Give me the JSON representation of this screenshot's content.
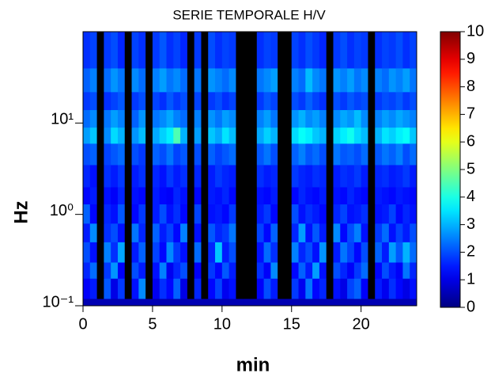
{
  "chart_data": {
    "type": "heatmap",
    "title": "SERIE TEMPORALE H/V",
    "x_label": "min",
    "y_label": "Hz",
    "xlim": [
      0,
      24
    ],
    "xticks": [
      0,
      5,
      10,
      15,
      20
    ],
    "ylim": [
      0.1,
      100
    ],
    "yscale": "log",
    "yticks": [
      {
        "value": 0.1,
        "label": "10⁻¹"
      },
      {
        "value": 1,
        "label": "10⁰"
      },
      {
        "value": 10,
        "label": "10¹"
      }
    ],
    "colormap": "jet",
    "gap_color": "#000000",
    "colorbar": {
      "lim": [
        0,
        10
      ],
      "ticks": [
        0,
        1,
        2,
        3,
        4,
        5,
        6,
        7,
        8,
        9,
        10
      ]
    },
    "x_edges": [
      0,
      0.5,
      1,
      1.5,
      2,
      2.5,
      3,
      3.5,
      4,
      4.5,
      5,
      5.5,
      6,
      6.5,
      7,
      7.5,
      8,
      8.5,
      9,
      9.5,
      10,
      10.5,
      11,
      11.5,
      12,
      12.5,
      13,
      13.5,
      14,
      14.5,
      15,
      15.5,
      16,
      16.5,
      17,
      17.5,
      18,
      18.5,
      19,
      19.5,
      20,
      20.5,
      21,
      21.5,
      22,
      22.5,
      23,
      23.5,
      24
    ],
    "y_edges": [
      0.1,
      0.12,
      0.2,
      0.3,
      0.5,
      0.8,
      1.3,
      2,
      3.5,
      6,
      9,
      14,
      22,
      40,
      100
    ],
    "z": [
      [
        0.5,
        0.5,
        0.5,
        0.5,
        0.5,
        0.5,
        0.5,
        0.5,
        0.5,
        0.5,
        0.5,
        0.5,
        0.5,
        0.5,
        0.5,
        0.5,
        0.5,
        0.5,
        0.5,
        0.5,
        0.5,
        0.5,
        0.5,
        0.5,
        0.5,
        0.5,
        0.5,
        0.5,
        0.5,
        0.5,
        0.5,
        0.5,
        0.5,
        0.5,
        0.5,
        0.5,
        0.5,
        0.5,
        0.5,
        0.5,
        0.5,
        0.5,
        0.5,
        0.5,
        0.5,
        0.5,
        0.5,
        0.5
      ],
      [
        1.2,
        1.5,
        null,
        2.1,
        1.0,
        1.8,
        null,
        1.4,
        2.6,
        null,
        1.1,
        1.7,
        1.3,
        2.2,
        1.0,
        null,
        1.6,
        null,
        1.3,
        1.9,
        1.1,
        1.4,
        null,
        null,
        null,
        1.2,
        2.0,
        1.5,
        null,
        null,
        1.8,
        1.1,
        2.4,
        1.3,
        1.6,
        null,
        1.4,
        1.0,
        1.9,
        2.2,
        1.2,
        null,
        1.5,
        1.1,
        1.7,
        1.3,
        1.0,
        1.4
      ],
      [
        1.6,
        2.3,
        null,
        1.8,
        2.7,
        1.2,
        null,
        2.0,
        1.5,
        null,
        1.4,
        2.5,
        1.1,
        1.6,
        2.0,
        null,
        1.2,
        null,
        1.8,
        1.3,
        2.1,
        1.5,
        null,
        null,
        null,
        1.7,
        1.2,
        2.6,
        null,
        null,
        1.3,
        2.2,
        1.5,
        2.8,
        1.4,
        null,
        2.0,
        1.6,
        1.2,
        1.8,
        2.3,
        null,
        1.3,
        2.0,
        1.5,
        1.2,
        2.4,
        1.6
      ],
      [
        2.0,
        1.4,
        null,
        2.5,
        1.7,
        2.9,
        null,
        1.5,
        2.2,
        null,
        1.9,
        1.3,
        2.6,
        1.8,
        1.4,
        null,
        2.3,
        null,
        1.6,
        3.2,
        1.5,
        2.0,
        null,
        null,
        null,
        1.4,
        2.3,
        1.7,
        null,
        null,
        2.5,
        1.6,
        2.0,
        1.4,
        2.7,
        null,
        1.5,
        2.4,
        1.9,
        1.3,
        2.0,
        null,
        2.2,
        1.5,
        2.8,
        2.1,
        3.0,
        2.3
      ],
      [
        1.5,
        2.6,
        null,
        1.7,
        2.0,
        1.4,
        null,
        2.4,
        1.6,
        null,
        2.2,
        1.5,
        1.9,
        1.3,
        2.5,
        null,
        1.4,
        null,
        2.1,
        1.6,
        1.8,
        2.4,
        null,
        null,
        null,
        1.9,
        1.3,
        2.2,
        null,
        null,
        1.6,
        2.8,
        1.4,
        2.1,
        1.5,
        null,
        2.6,
        1.3,
        2.0,
        2.5,
        1.4,
        null,
        1.8,
        2.3,
        1.4,
        1.9,
        1.5,
        2.0
      ],
      [
        2.2,
        1.3,
        null,
        1.6,
        1.4,
        2.1,
        null,
        1.3,
        1.8,
        null,
        1.5,
        2.0,
        1.4,
        1.7,
        1.3,
        null,
        1.9,
        null,
        1.4,
        1.5,
        1.3,
        1.8,
        null,
        null,
        null,
        1.5,
        1.8,
        1.3,
        null,
        null,
        2.0,
        1.4,
        1.7,
        1.5,
        1.3,
        null,
        1.6,
        1.9,
        1.4,
        1.5,
        1.7,
        null,
        1.4,
        1.5,
        1.9,
        1.3,
        1.6,
        1.4
      ],
      [
        1.3,
        1.5,
        null,
        1.4,
        1.2,
        1.6,
        null,
        1.4,
        1.3,
        null,
        1.5,
        1.3,
        1.2,
        1.6,
        1.4,
        null,
        1.3,
        null,
        1.5,
        1.4,
        1.6,
        1.3,
        null,
        null,
        null,
        1.4,
        1.3,
        1.5,
        null,
        null,
        1.3,
        1.6,
        1.4,
        1.3,
        1.5,
        null,
        1.4,
        1.3,
        1.6,
        1.4,
        1.3,
        null,
        1.5,
        1.4,
        1.3,
        1.5,
        1.4,
        1.3
      ],
      [
        1.6,
        1.4,
        null,
        1.7,
        1.5,
        1.8,
        null,
        1.5,
        1.7,
        null,
        1.6,
        1.4,
        1.8,
        1.5,
        1.7,
        null,
        1.6,
        null,
        1.5,
        1.8,
        1.6,
        1.5,
        null,
        null,
        null,
        1.7,
        1.5,
        1.6,
        null,
        null,
        1.8,
        1.6,
        1.5,
        1.7,
        1.6,
        null,
        1.5,
        1.7,
        1.6,
        1.8,
        1.5,
        null,
        1.6,
        1.7,
        1.5,
        1.6,
        1.8,
        1.5
      ],
      [
        2.0,
        2.2,
        null,
        1.9,
        2.1,
        2.3,
        null,
        2.0,
        1.8,
        null,
        2.2,
        2.0,
        2.4,
        1.9,
        2.1,
        null,
        2.0,
        null,
        2.2,
        1.9,
        2.1,
        2.3,
        null,
        null,
        null,
        2.1,
        2.4,
        2.0,
        null,
        null,
        2.2,
        2.5,
        2.1,
        2.3,
        2.0,
        null,
        2.4,
        2.1,
        2.2,
        2.0,
        2.3,
        null,
        2.1,
        2.4,
        2.2,
        2.5,
        2.0,
        2.3
      ],
      [
        2.8,
        3.2,
        null,
        2.6,
        3.4,
        3.0,
        null,
        2.7,
        3.1,
        null,
        2.9,
        3.3,
        3.6,
        4.5,
        3.0,
        null,
        2.8,
        null,
        3.2,
        2.9,
        3.5,
        3.1,
        null,
        null,
        null,
        2.9,
        3.3,
        3.0,
        null,
        null,
        3.4,
        3.8,
        3.6,
        3.2,
        3.0,
        null,
        3.3,
        3.6,
        3.9,
        3.4,
        3.1,
        null,
        3.0,
        3.5,
        3.3,
        3.6,
        3.8,
        3.2
      ],
      [
        2.3,
        2.6,
        null,
        2.4,
        2.8,
        2.5,
        null,
        2.2,
        2.7,
        null,
        2.4,
        2.6,
        2.9,
        2.5,
        2.3,
        null,
        2.5,
        null,
        2.7,
        2.4,
        2.8,
        2.6,
        null,
        null,
        null,
        2.5,
        2.8,
        2.4,
        null,
        null,
        2.7,
        3.0,
        2.6,
        2.8,
        2.5,
        null,
        2.6,
        2.9,
        2.7,
        3.1,
        2.6,
        null,
        2.5,
        2.8,
        2.6,
        2.9,
        2.7,
        2.5
      ],
      [
        1.8,
        2.0,
        null,
        1.7,
        1.9,
        2.1,
        null,
        1.8,
        2.0,
        null,
        1.9,
        1.7,
        2.1,
        1.8,
        2.0,
        null,
        1.9,
        null,
        1.8,
        2.0,
        1.7,
        1.9,
        null,
        null,
        null,
        1.8,
        2.1,
        1.9,
        null,
        null,
        2.0,
        1.8,
        2.2,
        1.9,
        1.7,
        null,
        2.0,
        1.8,
        2.1,
        1.9,
        2.0,
        null,
        1.8,
        2.0,
        1.9,
        2.1,
        1.8,
        2.0
      ],
      [
        2.2,
        2.5,
        null,
        2.3,
        2.7,
        2.4,
        null,
        2.6,
        2.3,
        null,
        2.5,
        2.8,
        2.4,
        2.6,
        2.3,
        null,
        2.4,
        null,
        2.7,
        2.5,
        2.3,
        2.6,
        null,
        null,
        null,
        2.4,
        2.6,
        2.8,
        null,
        null,
        2.5,
        2.3,
        3.1,
        2.6,
        2.4,
        null,
        2.7,
        2.5,
        2.8,
        2.4,
        2.6,
        null,
        2.5,
        2.3,
        2.7,
        2.5,
        2.8,
        2.4
      ],
      [
        1.7,
        1.9,
        null,
        1.8,
        2.0,
        1.6,
        null,
        1.9,
        1.7,
        null,
        1.8,
        2.1,
        1.7,
        1.9,
        1.6,
        null,
        1.8,
        null,
        2.0,
        1.7,
        1.9,
        1.8,
        null,
        null,
        null,
        1.7,
        1.9,
        1.8,
        null,
        null,
        1.9,
        1.7,
        2.0,
        1.8,
        1.6,
        null,
        1.8,
        2.0,
        1.7,
        1.9,
        1.8,
        null,
        1.7,
        1.9,
        1.8,
        2.0,
        1.7,
        1.9
      ]
    ]
  }
}
